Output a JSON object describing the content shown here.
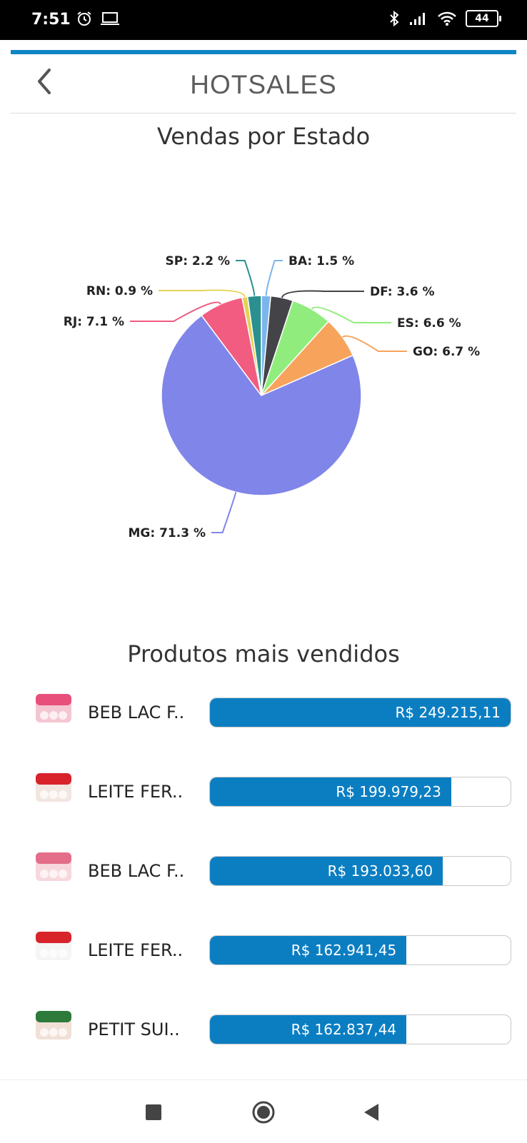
{
  "status_bar": {
    "time": "7:51",
    "battery": "44"
  },
  "header": {
    "title": "HOTSALES",
    "back_icon": "chevron-left-icon"
  },
  "chart_title": "Vendas por Estado",
  "chart_data": {
    "type": "pie",
    "title": "Vendas por Estado",
    "slices": [
      {
        "label": "BA",
        "value": 1.5,
        "color": "#7cb5ec",
        "text": "BA: 1.5 %"
      },
      {
        "label": "DF",
        "value": 3.6,
        "color": "#434348",
        "text": "DF: 3.6 %"
      },
      {
        "label": "ES",
        "value": 6.6,
        "color": "#90ed7d",
        "text": "ES: 6.6 %"
      },
      {
        "label": "GO",
        "value": 6.7,
        "color": "#f7a35c",
        "text": "GO: 6.7 %"
      },
      {
        "label": "MG",
        "value": 71.3,
        "color": "#8085e9",
        "text": "MG: 71.3 %"
      },
      {
        "label": "RJ",
        "value": 7.1,
        "color": "#f15c80",
        "text": "RJ: 7.1 %"
      },
      {
        "label": "RN",
        "value": 0.9,
        "color": "#e4d354",
        "text": "RN: 0.9 %"
      },
      {
        "label": "SP",
        "value": 2.2,
        "color": "#2b908f",
        "text": "SP: 2.2 %"
      }
    ]
  },
  "products_title": "Produtos mais vendidos",
  "products": [
    {
      "name": "BEB LAC F..",
      "value": "R$ 249.215,11",
      "amount": 249215.11
    },
    {
      "name": "LEITE FER..",
      "value": "R$ 199.979,23",
      "amount": 199979.23
    },
    {
      "name": "BEB LAC F..",
      "value": "R$ 193.033,60",
      "amount": 193033.6
    },
    {
      "name": "LEITE FER..",
      "value": "R$ 162.941,45",
      "amount": 162941.45
    },
    {
      "name": "PETIT SUI..",
      "value": "R$ 162.837,44",
      "amount": 162837.44
    }
  ],
  "colors": {
    "accent": "#0f86c6",
    "bar": "#0b7ec2"
  }
}
